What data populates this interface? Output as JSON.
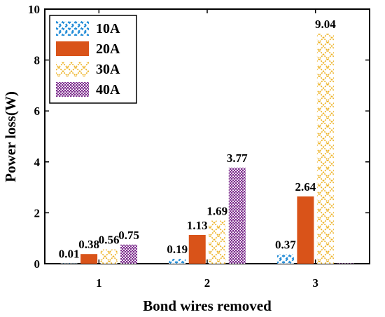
{
  "chart_data": {
    "type": "bar",
    "categories": [
      "1",
      "2",
      "3"
    ],
    "series": [
      {
        "name": "10A",
        "values": [
          0.01,
          0.19,
          0.37
        ],
        "labels": [
          "0.01",
          "0.19",
          "0.37"
        ],
        "color": "#1f8ad6",
        "pattern": "diagonal-hatch"
      },
      {
        "name": "20A",
        "values": [
          0.38,
          1.13,
          2.64
        ],
        "labels": [
          "0.38",
          "1.13",
          "2.64"
        ],
        "color": "#d95319",
        "pattern": "solid"
      },
      {
        "name": "30A",
        "values": [
          0.56,
          1.69,
          9.04
        ],
        "labels": [
          "0.56",
          "1.69",
          "9.04"
        ],
        "color": "#edb120",
        "pattern": "crosshatch"
      },
      {
        "name": "40A",
        "values": [
          0.75,
          3.77,
          0.0
        ],
        "labels": [
          "0.75",
          "3.77",
          ""
        ],
        "color": "#7e2f8e",
        "pattern": "dots"
      }
    ],
    "xlabel": "Bond wires removed",
    "ylabel": "Power loss(W)",
    "ylim": [
      0,
      10
    ],
    "yticks": [
      "0",
      "2",
      "4",
      "6",
      "8",
      "10"
    ],
    "legend_position": "top-left",
    "grid": false
  }
}
